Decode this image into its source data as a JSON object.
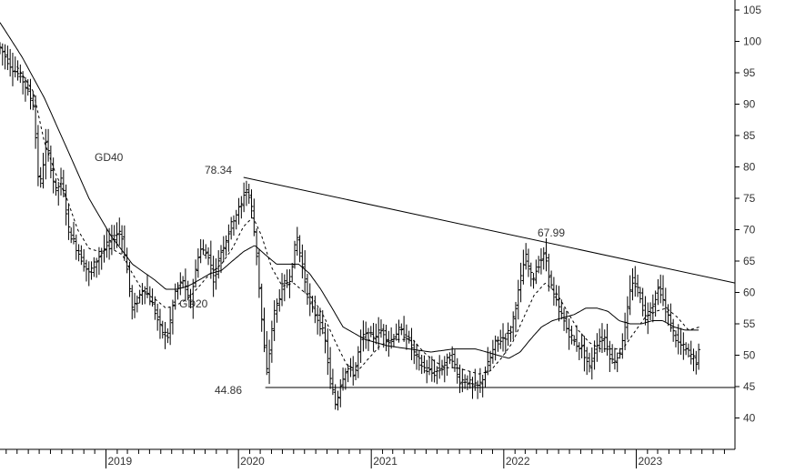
{
  "chart_data": {
    "type": "ohlc",
    "ylim": [
      35,
      106
    ],
    "y_ticks": [
      40,
      45,
      50,
      55,
      60,
      65,
      70,
      75,
      80,
      85,
      90,
      95,
      100,
      105
    ],
    "x_ticks": [
      "2019",
      "2020",
      "2021",
      "2022",
      "2023"
    ],
    "x_range": [
      "2018-03-15",
      "2023-09-30"
    ],
    "grid": false,
    "annotations": {
      "high_2020": "78.34",
      "high_2022": "67.99",
      "support": "44.86",
      "gd40_label": "GD40",
      "gd20_label": "GD20"
    },
    "trendline": {
      "start": {
        "x": "2020-01-15",
        "y": 78.34
      },
      "end": {
        "x": "2023-09-30",
        "y": 61.5
      }
    },
    "support_line": {
      "from": "2020-03-15",
      "to": "2023-09-30",
      "y": 44.86
    },
    "price_anchors": [
      [
        "2018-03-15",
        99
      ],
      [
        "2018-04-15",
        96
      ],
      [
        "2018-05-15",
        94
      ],
      [
        "2018-06-15",
        90
      ],
      [
        "2018-07-01",
        76
      ],
      [
        "2018-07-20",
        84
      ],
      [
        "2018-08-15",
        76
      ],
      [
        "2018-09-01",
        78
      ],
      [
        "2018-09-20",
        70
      ],
      [
        "2018-10-20",
        66
      ],
      [
        "2018-11-15",
        63
      ],
      [
        "2018-12-15",
        66
      ],
      [
        "2019-01-10",
        68
      ],
      [
        "2019-02-10",
        70
      ],
      [
        "2019-02-25",
        65
      ],
      [
        "2019-03-15",
        57
      ],
      [
        "2019-04-15",
        61
      ],
      [
        "2019-05-10",
        58
      ],
      [
        "2019-06-01",
        54
      ],
      [
        "2019-06-20",
        53
      ],
      [
        "2019-07-10",
        60
      ],
      [
        "2019-08-01",
        62
      ],
      [
        "2019-08-20",
        58
      ],
      [
        "2019-09-15",
        67
      ],
      [
        "2019-10-10",
        66
      ],
      [
        "2019-10-25",
        62
      ],
      [
        "2019-11-10",
        66
      ],
      [
        "2019-12-01",
        69
      ],
      [
        "2019-12-20",
        72
      ],
      [
        "2020-01-10",
        74
      ],
      [
        "2020-01-20",
        77
      ],
      [
        "2020-02-05",
        74
      ],
      [
        "2020-02-20",
        66
      ],
      [
        "2020-03-10",
        52
      ],
      [
        "2020-03-20",
        47
      ],
      [
        "2020-04-05",
        56
      ],
      [
        "2020-05-01",
        61
      ],
      [
        "2020-05-20",
        62
      ],
      [
        "2020-06-10",
        69
      ],
      [
        "2020-06-25",
        64
      ],
      [
        "2020-07-15",
        58
      ],
      [
        "2020-08-05",
        56
      ],
      [
        "2020-08-25",
        53
      ],
      [
        "2020-09-10",
        46
      ],
      [
        "2020-09-25",
        42
      ],
      [
        "2020-10-10",
        46
      ],
      [
        "2020-10-25",
        48
      ],
      [
        "2020-11-15",
        47
      ],
      [
        "2020-12-05",
        53
      ],
      [
        "2021-01-05",
        53
      ],
      [
        "2021-02-01",
        54
      ],
      [
        "2021-02-20",
        52
      ],
      [
        "2021-03-15",
        54
      ],
      [
        "2021-04-10",
        53
      ],
      [
        "2021-05-01",
        50
      ],
      [
        "2021-05-25",
        48
      ],
      [
        "2021-06-20",
        47
      ],
      [
        "2021-07-15",
        48
      ],
      [
        "2021-08-10",
        50
      ],
      [
        "2021-08-30",
        46
      ],
      [
        "2021-09-20",
        46
      ],
      [
        "2021-10-10",
        45
      ],
      [
        "2021-10-25",
        45
      ],
      [
        "2021-11-15",
        48
      ],
      [
        "2021-12-10",
        52
      ],
      [
        "2022-01-05",
        53
      ],
      [
        "2022-01-20",
        54
      ],
      [
        "2022-02-10",
        60
      ],
      [
        "2022-03-01",
        66
      ],
      [
        "2022-03-20",
        62
      ],
      [
        "2022-04-10",
        65
      ],
      [
        "2022-04-25",
        66
      ],
      [
        "2022-05-15",
        60
      ],
      [
        "2022-06-05",
        57
      ],
      [
        "2022-06-25",
        54
      ],
      [
        "2022-07-15",
        52
      ],
      [
        "2022-08-05",
        51
      ],
      [
        "2022-08-25",
        48
      ],
      [
        "2022-09-15",
        52
      ],
      [
        "2022-10-05",
        53
      ],
      [
        "2022-10-25",
        49
      ],
      [
        "2022-11-15",
        50
      ],
      [
        "2022-12-05",
        56
      ],
      [
        "2022-12-20",
        62
      ],
      [
        "2023-01-10",
        60
      ],
      [
        "2023-01-25",
        56
      ],
      [
        "2023-02-15",
        58
      ],
      [
        "2023-03-05",
        61
      ],
      [
        "2023-03-25",
        57
      ],
      [
        "2023-04-10",
        54
      ],
      [
        "2023-04-25",
        52
      ],
      [
        "2023-05-15",
        51
      ],
      [
        "2023-06-01",
        50
      ],
      [
        "2023-06-15",
        49
      ],
      [
        "2023-06-25",
        51
      ]
    ],
    "gd20_anchors": [
      [
        "2018-05-01",
        96
      ],
      [
        "2018-06-15",
        92
      ],
      [
        "2018-07-15",
        84
      ],
      [
        "2018-08-15",
        79
      ],
      [
        "2018-09-15",
        75
      ],
      [
        "2018-10-15",
        70
      ],
      [
        "2018-11-15",
        67
      ],
      [
        "2018-12-15",
        66.5
      ],
      [
        "2019-01-15",
        67
      ],
      [
        "2019-02-15",
        66
      ],
      [
        "2019-03-15",
        63
      ],
      [
        "2019-04-15",
        60
      ],
      [
        "2019-05-15",
        59
      ],
      [
        "2019-06-15",
        57.5
      ],
      [
        "2019-07-15",
        58
      ],
      [
        "2019-08-15",
        59
      ],
      [
        "2019-09-15",
        61
      ],
      [
        "2019-10-15",
        63
      ],
      [
        "2019-11-15",
        64.5
      ],
      [
        "2019-12-15",
        67
      ],
      [
        "2020-01-15",
        70.5
      ],
      [
        "2020-02-10",
        72
      ],
      [
        "2020-03-05",
        69
      ],
      [
        "2020-04-01",
        64
      ],
      [
        "2020-05-01",
        61
      ],
      [
        "2020-06-01",
        61.5
      ],
      [
        "2020-07-01",
        60
      ],
      [
        "2020-07-25",
        59
      ],
      [
        "2020-08-25",
        56
      ],
      [
        "2020-09-25",
        52
      ],
      [
        "2020-10-25",
        48.5
      ],
      [
        "2020-11-25",
        47.5
      ],
      [
        "2020-12-25",
        49.5
      ],
      [
        "2021-01-25",
        51.5
      ],
      [
        "2021-02-25",
        52.5
      ],
      [
        "2021-03-25",
        52.5
      ],
      [
        "2021-04-25",
        52.5
      ],
      [
        "2021-05-25",
        50.5
      ],
      [
        "2021-06-25",
        49
      ],
      [
        "2021-07-25",
        48
      ],
      [
        "2021-08-25",
        48
      ],
      [
        "2021-09-25",
        47.5
      ],
      [
        "2021-10-25",
        47
      ],
      [
        "2021-11-25",
        47.5
      ],
      [
        "2021-12-25",
        49.5
      ],
      [
        "2022-01-25",
        52
      ],
      [
        "2022-02-25",
        56
      ],
      [
        "2022-03-25",
        59.5
      ],
      [
        "2022-04-25",
        61.5
      ],
      [
        "2022-05-25",
        60
      ],
      [
        "2022-06-25",
        57
      ],
      [
        "2022-07-25",
        54
      ],
      [
        "2022-08-25",
        52
      ],
      [
        "2022-09-25",
        51
      ],
      [
        "2022-10-25",
        51
      ],
      [
        "2022-11-25",
        51
      ],
      [
        "2022-12-25",
        53.5
      ],
      [
        "2023-01-25",
        56
      ],
      [
        "2023-02-25",
        57
      ],
      [
        "2023-03-25",
        57.5
      ],
      [
        "2023-04-25",
        56
      ],
      [
        "2023-05-25",
        54
      ],
      [
        "2023-06-25",
        54.5
      ]
    ],
    "gd40_anchors": [
      [
        "2018-03-15",
        103
      ],
      [
        "2018-05-15",
        97.5
      ],
      [
        "2018-07-15",
        91
      ],
      [
        "2018-09-15",
        83
      ],
      [
        "2018-11-15",
        75
      ],
      [
        "2019-01-15",
        69
      ],
      [
        "2019-03-15",
        64.5
      ],
      [
        "2019-05-15",
        62
      ],
      [
        "2019-06-15",
        60.5
      ],
      [
        "2019-07-15",
        60.5
      ],
      [
        "2019-08-15",
        61
      ],
      [
        "2019-09-15",
        62
      ],
      [
        "2019-10-15",
        63
      ],
      [
        "2019-11-15",
        63.5
      ],
      [
        "2019-12-15",
        65
      ],
      [
        "2020-01-15",
        66.5
      ],
      [
        "2020-02-15",
        67.5
      ],
      [
        "2020-03-15",
        66
      ],
      [
        "2020-04-15",
        64.5
      ],
      [
        "2020-05-15",
        64.5
      ],
      [
        "2020-06-15",
        64.5
      ],
      [
        "2020-07-15",
        63
      ],
      [
        "2020-08-15",
        60.5
      ],
      [
        "2020-09-15",
        57.5
      ],
      [
        "2020-10-15",
        54.5
      ],
      [
        "2020-11-15",
        53.5
      ],
      [
        "2020-12-15",
        52.5
      ],
      [
        "2021-02-15",
        51.5
      ],
      [
        "2021-04-15",
        51
      ],
      [
        "2021-06-15",
        50.5
      ],
      [
        "2021-08-15",
        51
      ],
      [
        "2021-10-15",
        51
      ],
      [
        "2021-11-15",
        50.5
      ],
      [
        "2021-12-15",
        50
      ],
      [
        "2022-01-15",
        49.5
      ],
      [
        "2022-02-15",
        50.5
      ],
      [
        "2022-03-15",
        52.5
      ],
      [
        "2022-04-15",
        54.5
      ],
      [
        "2022-05-15",
        55.5
      ],
      [
        "2022-06-15",
        56
      ],
      [
        "2022-07-15",
        56.5
      ],
      [
        "2022-08-15",
        57.5
      ],
      [
        "2022-09-15",
        57.5
      ],
      [
        "2022-10-15",
        57
      ],
      [
        "2022-11-15",
        55.5
      ],
      [
        "2022-12-15",
        55
      ],
      [
        "2023-01-15",
        55
      ],
      [
        "2023-02-15",
        55.5
      ],
      [
        "2023-03-15",
        55.5
      ],
      [
        "2023-04-15",
        54.5
      ],
      [
        "2023-05-15",
        54
      ],
      [
        "2023-06-25",
        54
      ]
    ]
  }
}
